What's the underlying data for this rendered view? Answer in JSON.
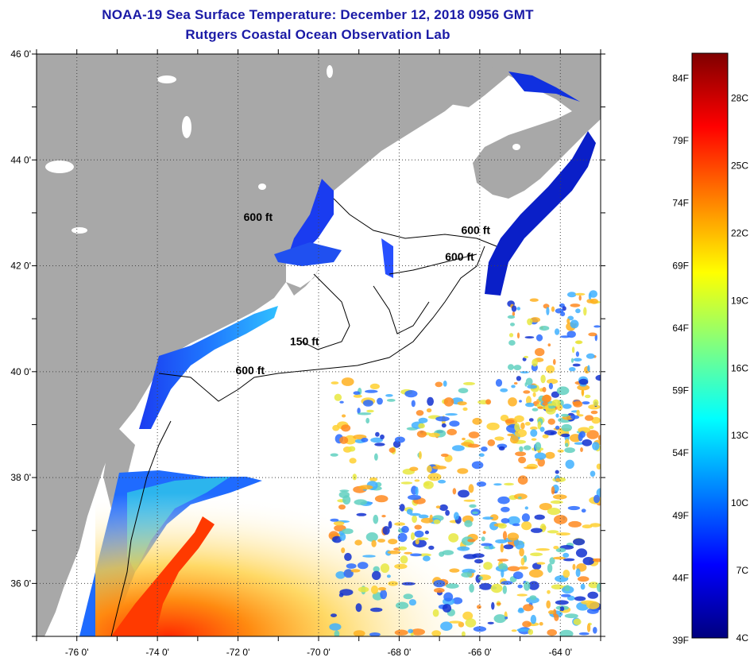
{
  "title": {
    "line1": "NOAA-19 Sea Surface Temperature:  December 12, 2018 0956 GMT",
    "line2": "Rutgers Coastal Ocean Observation Lab"
  },
  "map": {
    "lon_range": [
      -77,
      -63
    ],
    "lat_range": [
      35,
      46
    ],
    "lon_ticks": [
      {
        "value": -76,
        "label": "-76 0'"
      },
      {
        "value": -74,
        "label": "-74 0'"
      },
      {
        "value": -72,
        "label": "-72 0'"
      },
      {
        "value": -70,
        "label": "-70 0'"
      },
      {
        "value": -68,
        "label": "-68 0'"
      },
      {
        "value": -66,
        "label": "-66 0'"
      },
      {
        "value": -64,
        "label": "-64 0'"
      }
    ],
    "lat_ticks": [
      {
        "value": 46,
        "label": "46 0'"
      },
      {
        "value": 44,
        "label": "44 0'"
      },
      {
        "value": 42,
        "label": "42 0'"
      },
      {
        "value": 40,
        "label": "40 0'"
      },
      {
        "value": 38,
        "label": "38 0'"
      },
      {
        "value": 36,
        "label": "36 0'"
      }
    ],
    "contour_labels": [
      {
        "text": "600 ft",
        "lon": -71.5,
        "lat": 42.85
      },
      {
        "text": "600 ft",
        "lon": -66.1,
        "lat": 42.6
      },
      {
        "text": "600 ft",
        "lon": -66.5,
        "lat": 42.1
      },
      {
        "text": "150 ft",
        "lon": -70.35,
        "lat": 40.5
      },
      {
        "text": "600 ft",
        "lon": -71.7,
        "lat": 39.95
      }
    ],
    "colors": {
      "land": "#a8a8a8",
      "no_data": "#ffffff",
      "grid": "#444444"
    }
  },
  "colorbar": {
    "fahrenheit": [
      {
        "value": 84,
        "label": "84F"
      },
      {
        "value": 79,
        "label": "79F"
      },
      {
        "value": 74,
        "label": "74F"
      },
      {
        "value": 69,
        "label": "69F"
      },
      {
        "value": 64,
        "label": "64F"
      },
      {
        "value": 59,
        "label": "59F"
      },
      {
        "value": 54,
        "label": "54F"
      },
      {
        "value": 49,
        "label": "49F"
      },
      {
        "value": 44,
        "label": "44F"
      },
      {
        "value": 39,
        "label": "39F"
      }
    ],
    "celsius": [
      {
        "value": 28,
        "label": "28C"
      },
      {
        "value": 25,
        "label": "25C"
      },
      {
        "value": 22,
        "label": "22C"
      },
      {
        "value": 19,
        "label": "19C"
      },
      {
        "value": 16,
        "label": "16C"
      },
      {
        "value": 13,
        "label": "13C"
      },
      {
        "value": 10,
        "label": "10C"
      },
      {
        "value": 7,
        "label": "7C"
      },
      {
        "value": 4,
        "label": "4C"
      }
    ],
    "range_c": [
      4,
      30
    ],
    "stops": [
      "#00007f",
      "#0000ff",
      "#0080ff",
      "#00ffff",
      "#80ff80",
      "#ffff00",
      "#ff8000",
      "#ff0000",
      "#7f0000"
    ]
  }
}
